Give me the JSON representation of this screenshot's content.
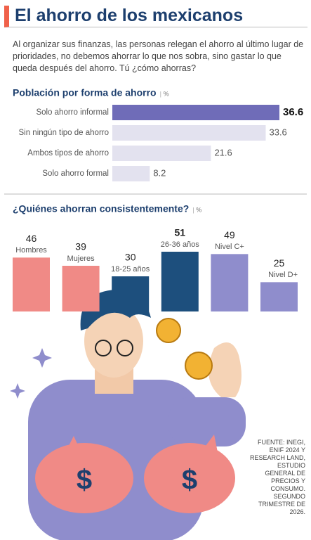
{
  "header": {
    "title": "El ahorro de los mexicanos"
  },
  "intro": "Al organizar sus finanzas, las personas relegan el ahorro al último lugar de prioridades, no debemos ahorrar lo que nos sobra, sino gastar lo que queda después del ahorro. Tú ¿cómo ahorras?",
  "chart_data": [
    {
      "type": "hbar",
      "title": "Población por forma de ahorro",
      "unit": "%",
      "categories": [
        "Solo ahorro informal",
        "Sin ningún tipo de ahorro",
        "Ambos tipos de ahorro",
        "Solo ahorro formal"
      ],
      "values": [
        36.6,
        33.6,
        21.6,
        8.2
      ],
      "colors": [
        "#6f6cb8",
        "#e3e2ef",
        "#e3e2ef",
        "#e3e2ef"
      ]
    },
    {
      "type": "bar",
      "title": "¿Quiénes ahorran consistentemente?",
      "unit": "%",
      "categories": [
        "Hombres",
        "Mujeres",
        "18-25 años",
        "26-36 años",
        "Nivel C+",
        "Nivel D+"
      ],
      "values": [
        46,
        39,
        30,
        51,
        49,
        25
      ],
      "colors": [
        "#f08a86",
        "#f08a86",
        "#1d4f7d",
        "#1d4f7d",
        "#8f8dcc",
        "#8f8dcc"
      ]
    }
  ],
  "source": "FUENTE: INEGI, ENIF 2024 Y RESEARCH LAND, ESTUDIO GENERAL DE PRECIOS Y CONSUMO. SEGUNDO TRIMESTRE DE 2026."
}
